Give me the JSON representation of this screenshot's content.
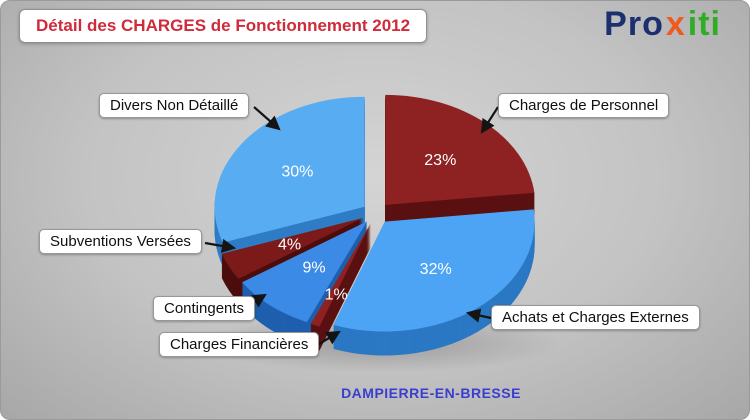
{
  "title": "Détail des CHARGES de Fonctionnement 2012",
  "logo": {
    "part1": "Pro",
    "part2": "x",
    "part3": "iti"
  },
  "footer": {
    "location": "DAMPIERRE-EN-BRESSE"
  },
  "colors": {
    "title_red": "#cf2b3a",
    "footer_blue": "#3a3ecf",
    "logo_navy": "#1c2f6e",
    "logo_orange": "#ef5a1e",
    "logo_green": "#2fae25",
    "light_blue_slice": "#4da4f4",
    "dark_red_slice": "#8e2121",
    "background_gray": "#c3c3c3"
  },
  "chart_data": {
    "type": "pie",
    "style": "3d-exploded",
    "title": "Détail des CHARGES de Fonctionnement 2012",
    "unit": "%",
    "start_at_top": true,
    "clockwise": true,
    "legend_position": "callouts",
    "slices": [
      {
        "label": "Charges de Personnel",
        "value": 23,
        "pct_label": "23%",
        "color": "#8e2121",
        "side_color": "#5a1111"
      },
      {
        "label": "Achats et Charges Externes",
        "value": 32,
        "pct_label": "32%",
        "color": "#4da4f4",
        "side_color": "#2b78c4"
      },
      {
        "label": "Charges Financières",
        "value": 1,
        "pct_label": "1%",
        "color": "#8e2121",
        "side_color": "#5a1111"
      },
      {
        "label": "Contingents",
        "value": 9,
        "pct_label": "9%",
        "color": "#3a8ae6",
        "side_color": "#1f5fae"
      },
      {
        "label": "Subventions Versées",
        "value": 4,
        "pct_label": "4%",
        "color": "#7c1a1a",
        "side_color": "#4c0d0d"
      },
      {
        "label": "Divers Non Détaillé",
        "value": 30,
        "pct_label": "30%",
        "color": "#58acf2",
        "side_color": "#2f7cc6"
      }
    ]
  }
}
